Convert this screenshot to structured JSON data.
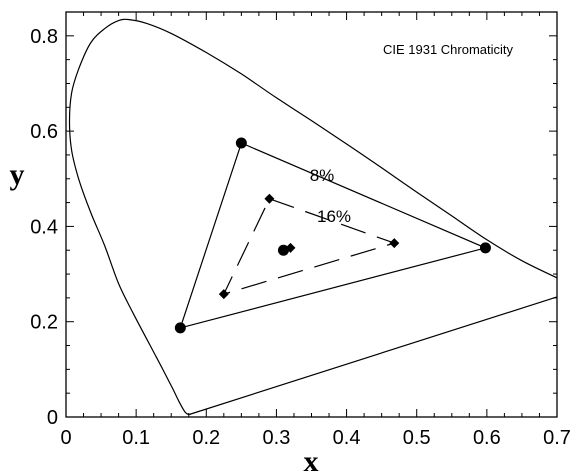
{
  "chart_data": {
    "type": "scatter",
    "title": "",
    "xlabel": "x",
    "ylabel": "y",
    "xlim": [
      0,
      0.7
    ],
    "ylim": [
      0,
      0.85
    ],
    "x_ticks": [
      0,
      0.1,
      0.2,
      0.3,
      0.4,
      0.5,
      0.6,
      0.7
    ],
    "x_tick_labels": [
      "0",
      "0.1",
      "0.2",
      "0.3",
      "0.4",
      "0.5",
      "0.6",
      "0.7"
    ],
    "y_ticks": [
      0,
      0.2,
      0.4,
      0.6,
      0.8
    ],
    "y_tick_labels": [
      "0",
      "0.2",
      "0.4",
      "0.6",
      "0.8"
    ],
    "grid": false,
    "annotations": [
      {
        "text": "CIE 1931 Chromaticity",
        "x": 0.545,
        "y": 0.785
      },
      {
        "text": "8%",
        "x": 0.355,
        "y": 0.505
      },
      {
        "text": "16%",
        "x": 0.4,
        "y": 0.42
      }
    ],
    "spectral_locus": [
      [
        0.175,
        0.005
      ],
      [
        0.17,
        0.01
      ],
      [
        0.162,
        0.03
      ],
      [
        0.152,
        0.06
      ],
      [
        0.138,
        0.1
      ],
      [
        0.12,
        0.15
      ],
      [
        0.095,
        0.22
      ],
      [
        0.075,
        0.28
      ],
      [
        0.055,
        0.36
      ],
      [
        0.035,
        0.43
      ],
      [
        0.018,
        0.5
      ],
      [
        0.008,
        0.56
      ],
      [
        0.005,
        0.62
      ],
      [
        0.008,
        0.68
      ],
      [
        0.018,
        0.73
      ],
      [
        0.035,
        0.785
      ],
      [
        0.055,
        0.815
      ],
      [
        0.075,
        0.832
      ],
      [
        0.09,
        0.834
      ],
      [
        0.115,
        0.826
      ],
      [
        0.15,
        0.805
      ],
      [
        0.2,
        0.765
      ],
      [
        0.25,
        0.72
      ],
      [
        0.3,
        0.67
      ],
      [
        0.35,
        0.622
      ],
      [
        0.4,
        0.573
      ],
      [
        0.45,
        0.523
      ],
      [
        0.5,
        0.472
      ],
      [
        0.55,
        0.422
      ],
      [
        0.6,
        0.372
      ],
      [
        0.65,
        0.328
      ],
      [
        0.7,
        0.292
      ]
    ],
    "purple_line": [
      [
        0.175,
        0.005
      ],
      [
        0.7,
        0.252
      ]
    ],
    "series": [
      {
        "marker": "circle",
        "connect": "solid",
        "points": [
          [
            0.25,
            0.575
          ],
          [
            0.598,
            0.355
          ],
          [
            0.163,
            0.187
          ]
        ]
      },
      {
        "marker": "diamond",
        "connect": "dashed",
        "points": [
          [
            0.29,
            0.458
          ],
          [
            0.468,
            0.365
          ],
          [
            0.225,
            0.258
          ]
        ]
      },
      {
        "marker": "circle",
        "connect": "none",
        "points": [
          [
            0.31,
            0.35
          ]
        ]
      },
      {
        "marker": "diamond",
        "connect": "none",
        "points": [
          [
            0.32,
            0.355
          ]
        ]
      }
    ]
  }
}
